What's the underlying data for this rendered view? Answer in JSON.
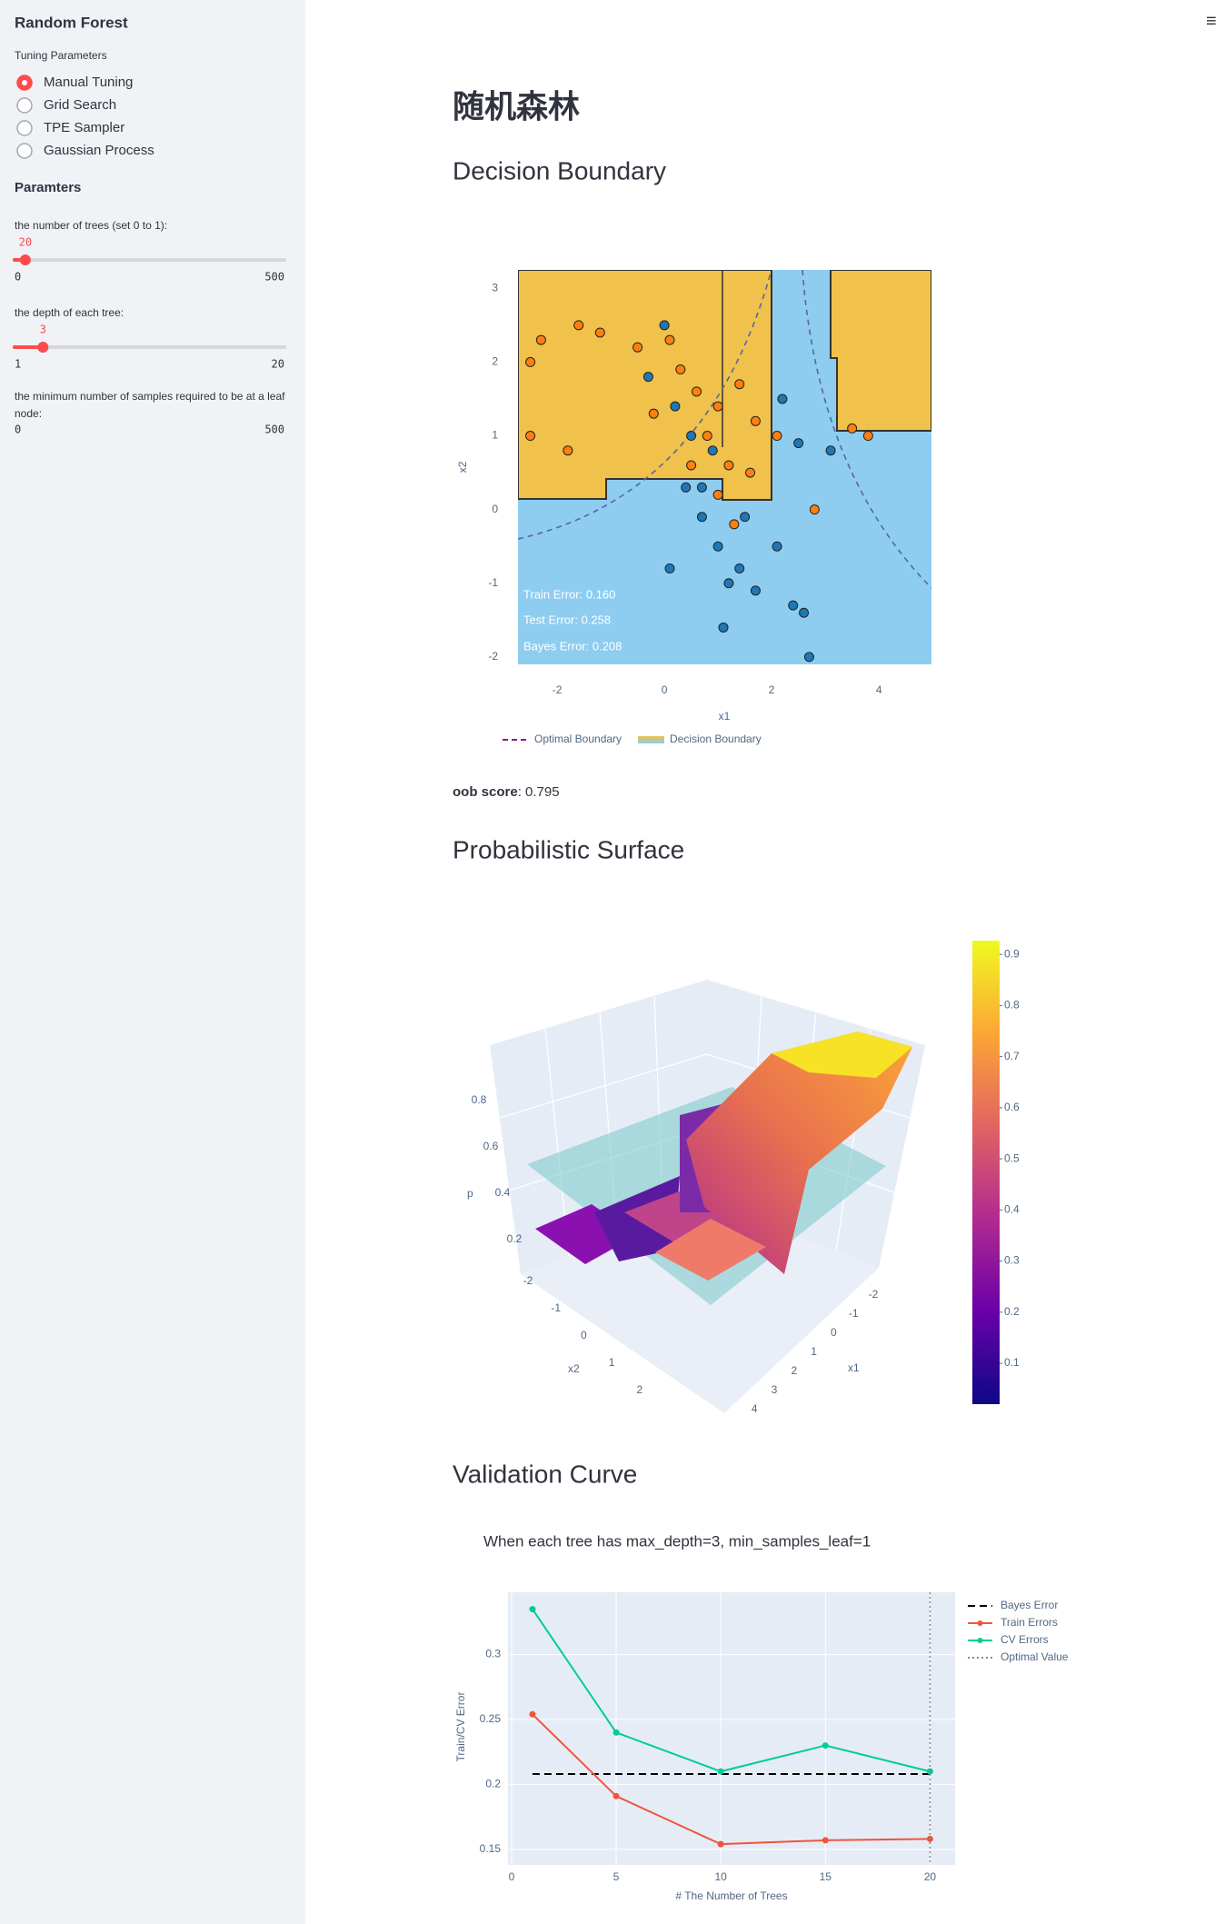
{
  "sidebar": {
    "title": "Random Forest",
    "tuning_label": "Tuning Parameters",
    "options": [
      "Manual Tuning",
      "Grid Search",
      "TPE Sampler",
      "Gaussian Process"
    ],
    "selected": 0,
    "params_header": "Paramters",
    "sliders": [
      {
        "label": "the number of trees (set 0 to 1):",
        "value": 20,
        "min": 0,
        "max": 500
      },
      {
        "label": "the depth of each tree:",
        "value": 3,
        "min": 1,
        "max": 20
      },
      {
        "label": "the minimum number of samples required to be at a leaf node:",
        "min": 0,
        "max": 500
      }
    ]
  },
  "menu_icon": "≡",
  "page_title": "随机森林",
  "sections": [
    "Decision Boundary",
    "Probabilistic Surface",
    "Validation Curve"
  ],
  "oob": {
    "label": "oob score",
    "text": ": 0.795"
  },
  "chart_data": [
    {
      "type": "scatter",
      "xlabel": "x1",
      "ylabel": "x2",
      "xlim": [
        -2.73,
        4.98
      ],
      "ylim": [
        -2.1,
        3.25
      ],
      "xticks": [
        -2,
        0,
        2,
        4
      ],
      "yticks": [
        -2,
        -1,
        0,
        1,
        2,
        3
      ],
      "series": [
        {
          "color": "#ff7f0e",
          "x": [
            -2.3,
            -2.5,
            -1.6,
            -1.2,
            -0.5,
            0.1,
            0.3,
            0.6,
            1.0,
            1.4,
            1.7,
            0.8,
            1.2,
            1.6,
            2.1,
            3.5,
            3.8,
            1.0,
            1.3,
            -0.2,
            0.5,
            -2.5,
            -1.8,
            2.8
          ],
          "y": [
            2.3,
            2.0,
            2.5,
            2.4,
            2.2,
            2.3,
            1.9,
            1.6,
            1.4,
            1.7,
            1.2,
            1.0,
            0.6,
            0.5,
            1.0,
            1.1,
            1.0,
            0.2,
            -0.2,
            1.3,
            0.6,
            1.0,
            0.8,
            0.0
          ]
        },
        {
          "color": "#1f77b4",
          "x": [
            0.0,
            -0.3,
            0.2,
            0.5,
            0.9,
            0.4,
            0.7,
            1.0,
            1.4,
            1.2,
            1.7,
            0.1,
            2.1,
            2.4,
            2.6,
            2.7,
            1.1,
            2.5,
            3.1,
            2.2,
            0.7,
            1.5
          ],
          "y": [
            2.5,
            1.8,
            1.4,
            1.0,
            0.8,
            0.3,
            -0.1,
            -0.5,
            -0.8,
            -1.0,
            -1.1,
            -0.8,
            -0.5,
            -1.3,
            -1.4,
            -2.0,
            -1.6,
            0.9,
            0.8,
            1.5,
            0.3,
            -0.1
          ]
        }
      ],
      "annotations": [
        "Train Error: 0.160",
        "Test Error: 0.258",
        "Bayes Error: 0.208"
      ],
      "legend": [
        "Optimal Boundary",
        "Decision Boundary"
      ]
    },
    {
      "type": "surface",
      "xlabel": "x1",
      "ylabel": "x2",
      "zlabel": "p",
      "xticks": [
        -2,
        -1,
        0,
        1,
        2,
        3,
        4
      ],
      "yticks": [
        -2,
        -1,
        0,
        1,
        2
      ],
      "zticks": [
        0.2,
        0.4,
        0.6,
        0.8
      ],
      "colorbar": {
        "lim": [
          0.02,
          0.927
        ],
        "ticks": [
          0.1,
          0.2,
          0.3,
          0.4,
          0.5,
          0.6,
          0.7,
          0.8,
          0.9
        ]
      }
    },
    {
      "type": "line",
      "subtitle": "When each tree has max_depth=3, min_samples_leaf=1",
      "xlabel": "# The Number of Trees",
      "ylabel": "Train/CV Error",
      "x": [
        1,
        5,
        10,
        15,
        20
      ],
      "xlim": [
        -0.17,
        21.2
      ],
      "ylim": [
        0.138,
        0.348
      ],
      "xticks": [
        0,
        5,
        10,
        15,
        20
      ],
      "yticks": [
        0.15,
        0.2,
        0.25,
        0.3
      ],
      "grid": true,
      "series": [
        {
          "name": "Bayes Error",
          "color": "#000000",
          "dash": "dash",
          "x": [
            1,
            20
          ],
          "values": [
            0.208,
            0.208
          ]
        },
        {
          "name": "Train Errors",
          "color": "#ef553b",
          "values": [
            0.254,
            0.191,
            0.154,
            0.157,
            0.158
          ]
        },
        {
          "name": "CV Errors",
          "color": "#00cc96",
          "values": [
            0.335,
            0.24,
            0.21,
            0.23,
            0.21
          ]
        },
        {
          "name": "Optimal Value",
          "color": "#888888",
          "dash": "dot",
          "optimal_x": 20
        }
      ]
    }
  ]
}
